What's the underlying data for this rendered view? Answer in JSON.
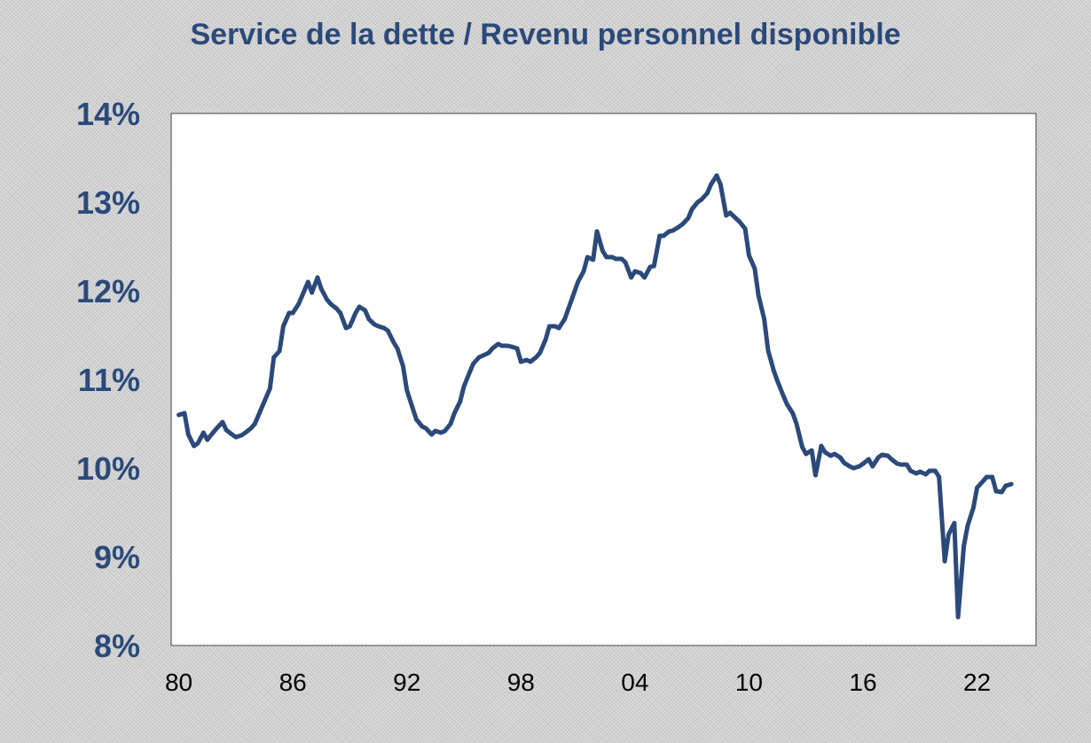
{
  "chart_data": {
    "type": "line",
    "title": "Service de la dette / Revenu personnel disponible",
    "xlabel": "",
    "ylabel": "",
    "x_tick_labels": [
      "80",
      "86",
      "92",
      "98",
      "04",
      "10",
      "16",
      "22"
    ],
    "x_tick_years": [
      1980,
      1986,
      1992,
      1998,
      2004,
      2010,
      2016,
      2022
    ],
    "y_tick_labels": [
      "8%",
      "9%",
      "10%",
      "11%",
      "12%",
      "13%",
      "14%"
    ],
    "y_tick_values": [
      8,
      9,
      10,
      11,
      12,
      13,
      14
    ],
    "xlim": [
      1979.6,
      2025.1
    ],
    "ylim": [
      8,
      14
    ],
    "grid": false,
    "legend": "none",
    "line_color": "#2b4a7a",
    "series": [
      {
        "name": "",
        "x": [
          1980.0,
          1980.3,
          1980.5,
          1980.8,
          1981.0,
          1981.3,
          1981.5,
          1981.8,
          1982.0,
          1982.3,
          1982.5,
          1982.8,
          1983.0,
          1983.3,
          1983.5,
          1983.8,
          1984.0,
          1984.3,
          1984.5,
          1984.8,
          1985.0,
          1985.3,
          1985.5,
          1985.8,
          1986.0,
          1986.3,
          1986.5,
          1986.8,
          1987.0,
          1987.3,
          1987.5,
          1987.8,
          1988.0,
          1988.3,
          1988.5,
          1988.8,
          1989.0,
          1989.3,
          1989.5,
          1989.8,
          1990.0,
          1990.3,
          1990.5,
          1990.8,
          1991.0,
          1991.3,
          1991.5,
          1991.8,
          1992.0,
          1992.3,
          1992.5,
          1992.8,
          1993.0,
          1993.3,
          1993.5,
          1993.8,
          1994.0,
          1994.3,
          1994.5,
          1994.8,
          1995.0,
          1995.3,
          1995.5,
          1995.8,
          1996.0,
          1996.3,
          1996.5,
          1996.8,
          1997.0,
          1997.3,
          1997.5,
          1997.8,
          1998.0,
          1998.3,
          1998.5,
          1998.8,
          1999.0,
          1999.3,
          1999.5,
          1999.8,
          2000.0,
          2000.3,
          2000.5,
          2000.8,
          2001.0,
          2001.3,
          2001.5,
          2001.8,
          2002.0,
          2002.3,
          2002.5,
          2002.8,
          2003.0,
          2003.3,
          2003.5,
          2003.8,
          2004.0,
          2004.3,
          2004.5,
          2004.8,
          2005.0,
          2005.3,
          2005.5,
          2005.8,
          2006.0,
          2006.3,
          2006.5,
          2006.8,
          2007.0,
          2007.3,
          2007.5,
          2007.8,
          2008.0,
          2008.3,
          2008.5,
          2008.8,
          2009.0,
          2009.3,
          2009.5,
          2009.8,
          2010.0,
          2010.3,
          2010.5,
          2010.8,
          2011.0,
          2011.3,
          2011.5,
          2011.8,
          2012.0,
          2012.3,
          2012.5,
          2012.8,
          2013.0,
          2013.3,
          2013.5,
          2013.8,
          2014.0,
          2014.3,
          2014.5,
          2014.8,
          2015.0,
          2015.3,
          2015.5,
          2015.8,
          2016.0,
          2016.3,
          2016.5,
          2016.8,
          2017.0,
          2017.3,
          2017.5,
          2017.8,
          2018.0,
          2018.3,
          2018.5,
          2018.8,
          2019.0,
          2019.3,
          2019.5,
          2019.8,
          2020.0,
          2020.3,
          2020.5,
          2020.8,
          2021.0,
          2021.3,
          2021.5,
          2021.8,
          2022.0,
          2022.3,
          2022.5,
          2022.8,
          2023.0,
          2023.3,
          2023.5,
          2023.8
        ],
        "y": [
          10.6,
          10.62,
          10.38,
          10.25,
          10.28,
          10.4,
          10.32,
          10.4,
          10.45,
          10.52,
          10.43,
          10.38,
          10.35,
          10.37,
          10.4,
          10.45,
          10.5,
          10.65,
          10.75,
          10.9,
          11.25,
          11.32,
          11.6,
          11.75,
          11.75,
          11.85,
          11.95,
          12.1,
          11.98,
          12.15,
          12.02,
          11.9,
          11.85,
          11.8,
          11.75,
          11.58,
          11.6,
          11.75,
          11.82,
          11.78,
          11.68,
          11.62,
          11.6,
          11.58,
          11.55,
          11.42,
          11.35,
          11.15,
          10.88,
          10.68,
          10.55,
          10.47,
          10.45,
          10.38,
          10.42,
          10.4,
          10.42,
          10.5,
          10.62,
          10.75,
          10.92,
          11.08,
          11.18,
          11.25,
          11.27,
          11.3,
          11.35,
          11.4,
          11.38,
          11.38,
          11.37,
          11.35,
          11.2,
          11.22,
          11.2,
          11.25,
          11.3,
          11.45,
          11.6,
          11.6,
          11.58,
          11.68,
          11.8,
          11.98,
          12.1,
          12.22,
          12.38,
          12.35,
          12.67,
          12.45,
          12.38,
          12.38,
          12.36,
          12.36,
          12.32,
          12.15,
          12.22,
          12.2,
          12.15,
          12.27,
          12.28,
          12.62,
          12.62,
          12.67,
          12.68,
          12.72,
          12.75,
          12.82,
          12.92,
          13.0,
          13.03,
          13.1,
          13.2,
          13.3,
          13.2,
          12.85,
          12.88,
          12.82,
          12.78,
          12.7,
          12.4,
          12.25,
          11.95,
          11.68,
          11.33,
          11.1,
          10.98,
          10.82,
          10.72,
          10.62,
          10.5,
          10.24,
          10.16,
          10.2,
          9.92,
          10.25,
          10.18,
          10.14,
          10.16,
          10.12,
          10.06,
          10.02,
          10.0,
          10.02,
          10.05,
          10.1,
          10.02,
          10.12,
          10.15,
          10.14,
          10.1,
          10.05,
          10.04,
          10.04,
          9.97,
          9.94,
          9.96,
          9.93,
          9.97,
          9.97,
          9.9,
          8.95,
          9.25,
          9.38,
          8.32,
          9.12,
          9.35,
          9.55,
          9.78,
          9.85,
          9.9,
          9.9,
          9.74,
          9.73,
          9.8,
          9.82
        ]
      }
    ]
  }
}
